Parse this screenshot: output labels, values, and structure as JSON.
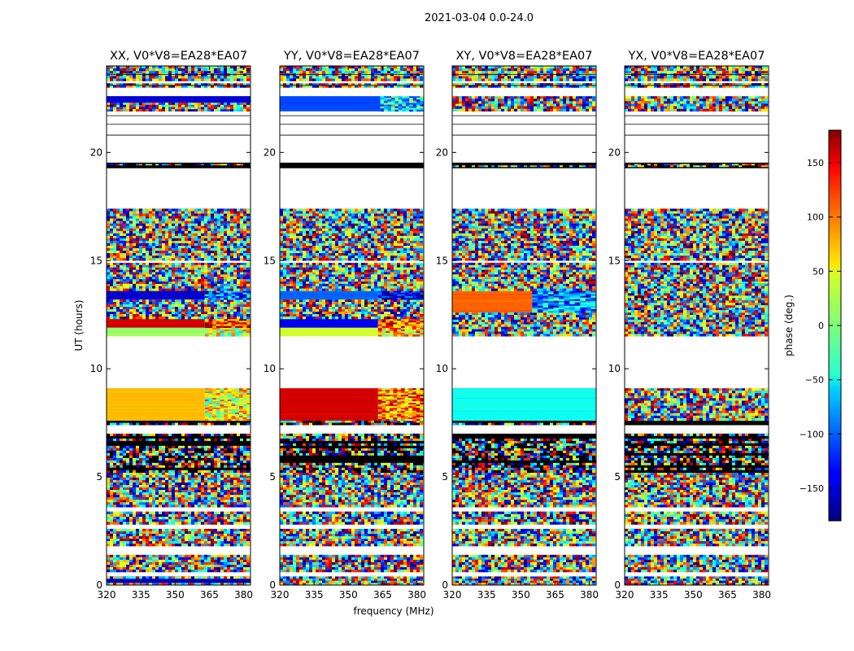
{
  "chart_data": {
    "type": "heatmap",
    "suptitle": "2021-03-04 0.0-24.0",
    "xlabel": "frequency (MHz)",
    "ylabel": "UT (hours)",
    "xlim": [
      320,
      383
    ],
    "ylim": [
      0,
      24
    ],
    "xticks": [
      320,
      335,
      350,
      365,
      380
    ],
    "yticks": [
      0,
      5,
      10,
      15,
      20
    ],
    "colorbar": {
      "label": "phase (deg.)",
      "range": [
        -180,
        180
      ],
      "ticks": [
        150,
        100,
        50,
        0,
        -50,
        -100,
        -150
      ],
      "tick_labels": [
        "150",
        "100",
        "50",
        "0",
        "−50",
        "−100",
        "−150"
      ],
      "colormap": "jet"
    },
    "panels": [
      {
        "title": "XX, V0*V8=EA28*EA07",
        "segments": [
          {
            "y": [
              0.0,
              0.1
            ],
            "kind": "noise"
          },
          {
            "y": [
              0.1,
              0.3
            ],
            "kind": "solid",
            "phase": -160,
            "alt": -120,
            "split_x": 383
          },
          {
            "y": [
              0.3,
              0.4
            ],
            "kind": "noise"
          },
          {
            "y": [
              0.6,
              1.4
            ],
            "kind": "noise"
          },
          {
            "y": [
              1.8,
              2.6
            ],
            "kind": "noise"
          },
          {
            "y": [
              2.8,
              3.4
            ],
            "kind": "noise"
          },
          {
            "y": [
              3.6,
              5.2
            ],
            "kind": "noise"
          },
          {
            "y": [
              5.2,
              7.0
            ],
            "kind": "dense"
          },
          {
            "y": [
              7.4,
              7.6
            ],
            "kind": "dense"
          },
          {
            "y": [
              7.6,
              9.1
            ],
            "kind": "solid",
            "phase": 70,
            "alt": 40,
            "split_x": 363
          },
          {
            "y": [
              11.5,
              11.9
            ],
            "kind": "solid",
            "phase": 10,
            "alt": 30,
            "split_x": 363
          },
          {
            "y": [
              11.9,
              12.3
            ],
            "kind": "solid",
            "phase": 150,
            "alt": 120,
            "split_x": 363
          },
          {
            "y": [
              12.3,
              13.2
            ],
            "kind": "noise"
          },
          {
            "y": [
              13.2,
              13.6
            ],
            "kind": "solid",
            "phase": -150,
            "alt": -100,
            "split_x": 363
          },
          {
            "y": [
              13.6,
              14.9
            ],
            "kind": "noise"
          },
          {
            "y": [
              15.0,
              17.4
            ],
            "kind": "noise"
          },
          {
            "y": [
              19.3,
              19.5
            ],
            "kind": "dense"
          },
          {
            "y": [
              21.9,
              22.3
            ],
            "kind": "noise"
          },
          {
            "y": [
              22.3,
              22.6
            ],
            "kind": "solid",
            "phase": -150,
            "alt": -100,
            "split_x": 383
          },
          {
            "y": [
              23.0,
              23.2
            ],
            "kind": "noise"
          },
          {
            "y": [
              23.3,
              24.0
            ],
            "kind": "noise"
          }
        ]
      },
      {
        "title": "YY, V0*V8=EA28*EA07",
        "segments": [
          {
            "y": [
              0.0,
              0.4
            ],
            "kind": "noise"
          },
          {
            "y": [
              0.6,
              1.4
            ],
            "kind": "noise"
          },
          {
            "y": [
              1.8,
              2.6
            ],
            "kind": "noise"
          },
          {
            "y": [
              2.8,
              3.4
            ],
            "kind": "noise"
          },
          {
            "y": [
              3.6,
              5.2
            ],
            "kind": "noise"
          },
          {
            "y": [
              5.2,
              7.0
            ],
            "kind": "dense"
          },
          {
            "y": [
              7.4,
              7.6
            ],
            "kind": "dense"
          },
          {
            "y": [
              7.6,
              9.1
            ],
            "kind": "solid",
            "phase": 150,
            "alt": 90,
            "split_x": 363
          },
          {
            "y": [
              11.5,
              11.9
            ],
            "kind": "solid",
            "phase": 30,
            "alt": 60,
            "split_x": 363
          },
          {
            "y": [
              11.9,
              12.3
            ],
            "kind": "solid",
            "phase": -140,
            "alt": 100,
            "split_x": 363
          },
          {
            "y": [
              12.3,
              13.2
            ],
            "kind": "noise"
          },
          {
            "y": [
              13.2,
              13.6
            ],
            "kind": "solid",
            "phase": -100,
            "alt": -150,
            "split_x": 363
          },
          {
            "y": [
              13.6,
              14.9
            ],
            "kind": "noise"
          },
          {
            "y": [
              15.0,
              17.4
            ],
            "kind": "noise"
          },
          {
            "y": [
              19.3,
              19.5
            ],
            "kind": "dense"
          },
          {
            "y": [
              21.9,
              22.6
            ],
            "kind": "solid",
            "phase": -110,
            "alt": -60,
            "split_x": 364
          },
          {
            "y": [
              23.0,
              23.2
            ],
            "kind": "noise"
          },
          {
            "y": [
              23.3,
              24.0
            ],
            "kind": "noise"
          }
        ]
      },
      {
        "title": "XY, V0*V8=EA28*EA07",
        "segments": [
          {
            "y": [
              0.0,
              0.4
            ],
            "kind": "noise"
          },
          {
            "y": [
              0.6,
              1.4
            ],
            "kind": "noise"
          },
          {
            "y": [
              1.8,
              2.6
            ],
            "kind": "noise"
          },
          {
            "y": [
              2.8,
              3.4
            ],
            "kind": "noise"
          },
          {
            "y": [
              3.6,
              5.2
            ],
            "kind": "noise"
          },
          {
            "y": [
              5.2,
              7.0
            ],
            "kind": "dense"
          },
          {
            "y": [
              7.4,
              7.6
            ],
            "kind": "dense"
          },
          {
            "y": [
              7.6,
              9.1
            ],
            "kind": "solid",
            "phase": -40,
            "alt": -20,
            "split_x": 383
          },
          {
            "y": [
              11.5,
              12.6
            ],
            "kind": "noise"
          },
          {
            "y": [
              12.6,
              13.6
            ],
            "kind": "solid",
            "phase": 100,
            "alt": -80,
            "split_x": 355
          },
          {
            "y": [
              13.6,
              14.9
            ],
            "kind": "noise"
          },
          {
            "y": [
              15.0,
              17.4
            ],
            "kind": "noise"
          },
          {
            "y": [
              19.3,
              19.5
            ],
            "kind": "dense"
          },
          {
            "y": [
              21.9,
              22.6
            ],
            "kind": "noise"
          },
          {
            "y": [
              23.0,
              23.2
            ],
            "kind": "noise"
          },
          {
            "y": [
              23.3,
              24.0
            ],
            "kind": "noise"
          }
        ]
      },
      {
        "title": "YX, V0*V8=EA28*EA07",
        "segments": [
          {
            "y": [
              0.0,
              0.4
            ],
            "kind": "noise"
          },
          {
            "y": [
              0.6,
              1.4
            ],
            "kind": "noise"
          },
          {
            "y": [
              1.8,
              2.6
            ],
            "kind": "noise"
          },
          {
            "y": [
              2.8,
              3.4
            ],
            "kind": "noise"
          },
          {
            "y": [
              3.6,
              5.2
            ],
            "kind": "noise"
          },
          {
            "y": [
              5.2,
              7.0
            ],
            "kind": "dense"
          },
          {
            "y": [
              7.4,
              7.6
            ],
            "kind": "dense"
          },
          {
            "y": [
              7.6,
              9.1
            ],
            "kind": "noise"
          },
          {
            "y": [
              11.5,
              12.6
            ],
            "kind": "noise"
          },
          {
            "y": [
              12.6,
              13.6
            ],
            "kind": "noise"
          },
          {
            "y": [
              13.6,
              14.9
            ],
            "kind": "noise"
          },
          {
            "y": [
              15.0,
              17.4
            ],
            "kind": "noise"
          },
          {
            "y": [
              19.3,
              19.5
            ],
            "kind": "dense"
          },
          {
            "y": [
              21.9,
              22.6
            ],
            "kind": "noise"
          },
          {
            "y": [
              23.0,
              23.2
            ],
            "kind": "noise"
          },
          {
            "y": [
              23.3,
              24.0
            ],
            "kind": "noise"
          }
        ]
      }
    ],
    "white_gaps": [
      [
        0.4,
        0.6
      ],
      [
        1.4,
        1.8
      ],
      [
        2.6,
        2.8
      ],
      [
        3.4,
        3.6
      ],
      [
        7.0,
        7.4
      ],
      [
        9.1,
        11.5
      ],
      [
        14.9,
        15.0
      ],
      [
        17.4,
        19.3
      ],
      [
        19.5,
        21.9
      ],
      [
        22.6,
        23.0
      ],
      [
        23.2,
        23.3
      ]
    ],
    "thin_lines": [
      20.8,
      21.3,
      21.7,
      23.6,
      23.1
    ]
  }
}
